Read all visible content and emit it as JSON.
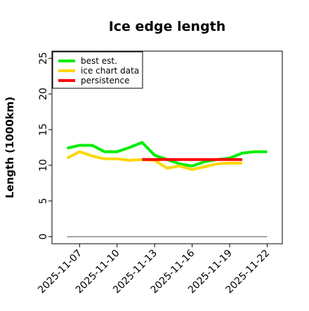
{
  "chart_data": {
    "type": "line",
    "title": "Ice edge length",
    "xlabel": "",
    "ylabel": "Length (1000km)",
    "ylim": [
      -1,
      26
    ],
    "xlim": [
      "2025-11-04T19:00",
      "2025-11-23T05:00"
    ],
    "x_ticks": [
      "2025-11-07",
      "2025-11-10",
      "2025-11-13",
      "2025-11-16",
      "2025-11-19",
      "2025-11-22"
    ],
    "y_ticks": [
      0,
      5,
      10,
      15,
      20,
      25
    ],
    "grid": false,
    "legend_position": "top-left",
    "series": [
      {
        "name": "best est.",
        "color": "#00ee00",
        "x": [
          "2025-11-06",
          "2025-11-07",
          "2025-11-08",
          "2025-11-09",
          "2025-11-10",
          "2025-11-11",
          "2025-11-12",
          "2025-11-13",
          "2025-11-14",
          "2025-11-15",
          "2025-11-16",
          "2025-11-17",
          "2025-11-18",
          "2025-11-19",
          "2025-11-20",
          "2025-11-21",
          "2025-11-22"
        ],
        "y": [
          12.4,
          12.8,
          12.8,
          11.9,
          11.9,
          12.5,
          13.2,
          11.4,
          10.8,
          10.2,
          9.9,
          10.5,
          10.8,
          11.0,
          11.7,
          11.9,
          11.9
        ]
      },
      {
        "name": "ice chart data",
        "color": "#ffd700",
        "x": [
          "2025-11-06",
          "2025-11-07",
          "2025-11-08",
          "2025-11-09",
          "2025-11-10",
          "2025-11-11",
          "2025-11-12",
          "2025-11-13",
          "2025-11-14",
          "2025-11-15",
          "2025-11-16",
          "2025-11-17",
          "2025-11-18",
          "2025-11-19",
          "2025-11-20"
        ],
        "y": [
          11.0,
          11.9,
          11.3,
          10.9,
          10.9,
          10.7,
          10.8,
          10.7,
          9.6,
          9.9,
          9.4,
          9.8,
          10.2,
          10.3,
          10.3
        ]
      },
      {
        "name": "persistence",
        "color": "#ff0000",
        "x": [
          "2025-11-12",
          "2025-11-20"
        ],
        "y": [
          10.8,
          10.8
        ]
      }
    ],
    "reference_line": {
      "color": "#888888",
      "x": [
        "2025-11-06",
        "2025-11-22"
      ],
      "y": [
        0,
        0
      ]
    }
  }
}
